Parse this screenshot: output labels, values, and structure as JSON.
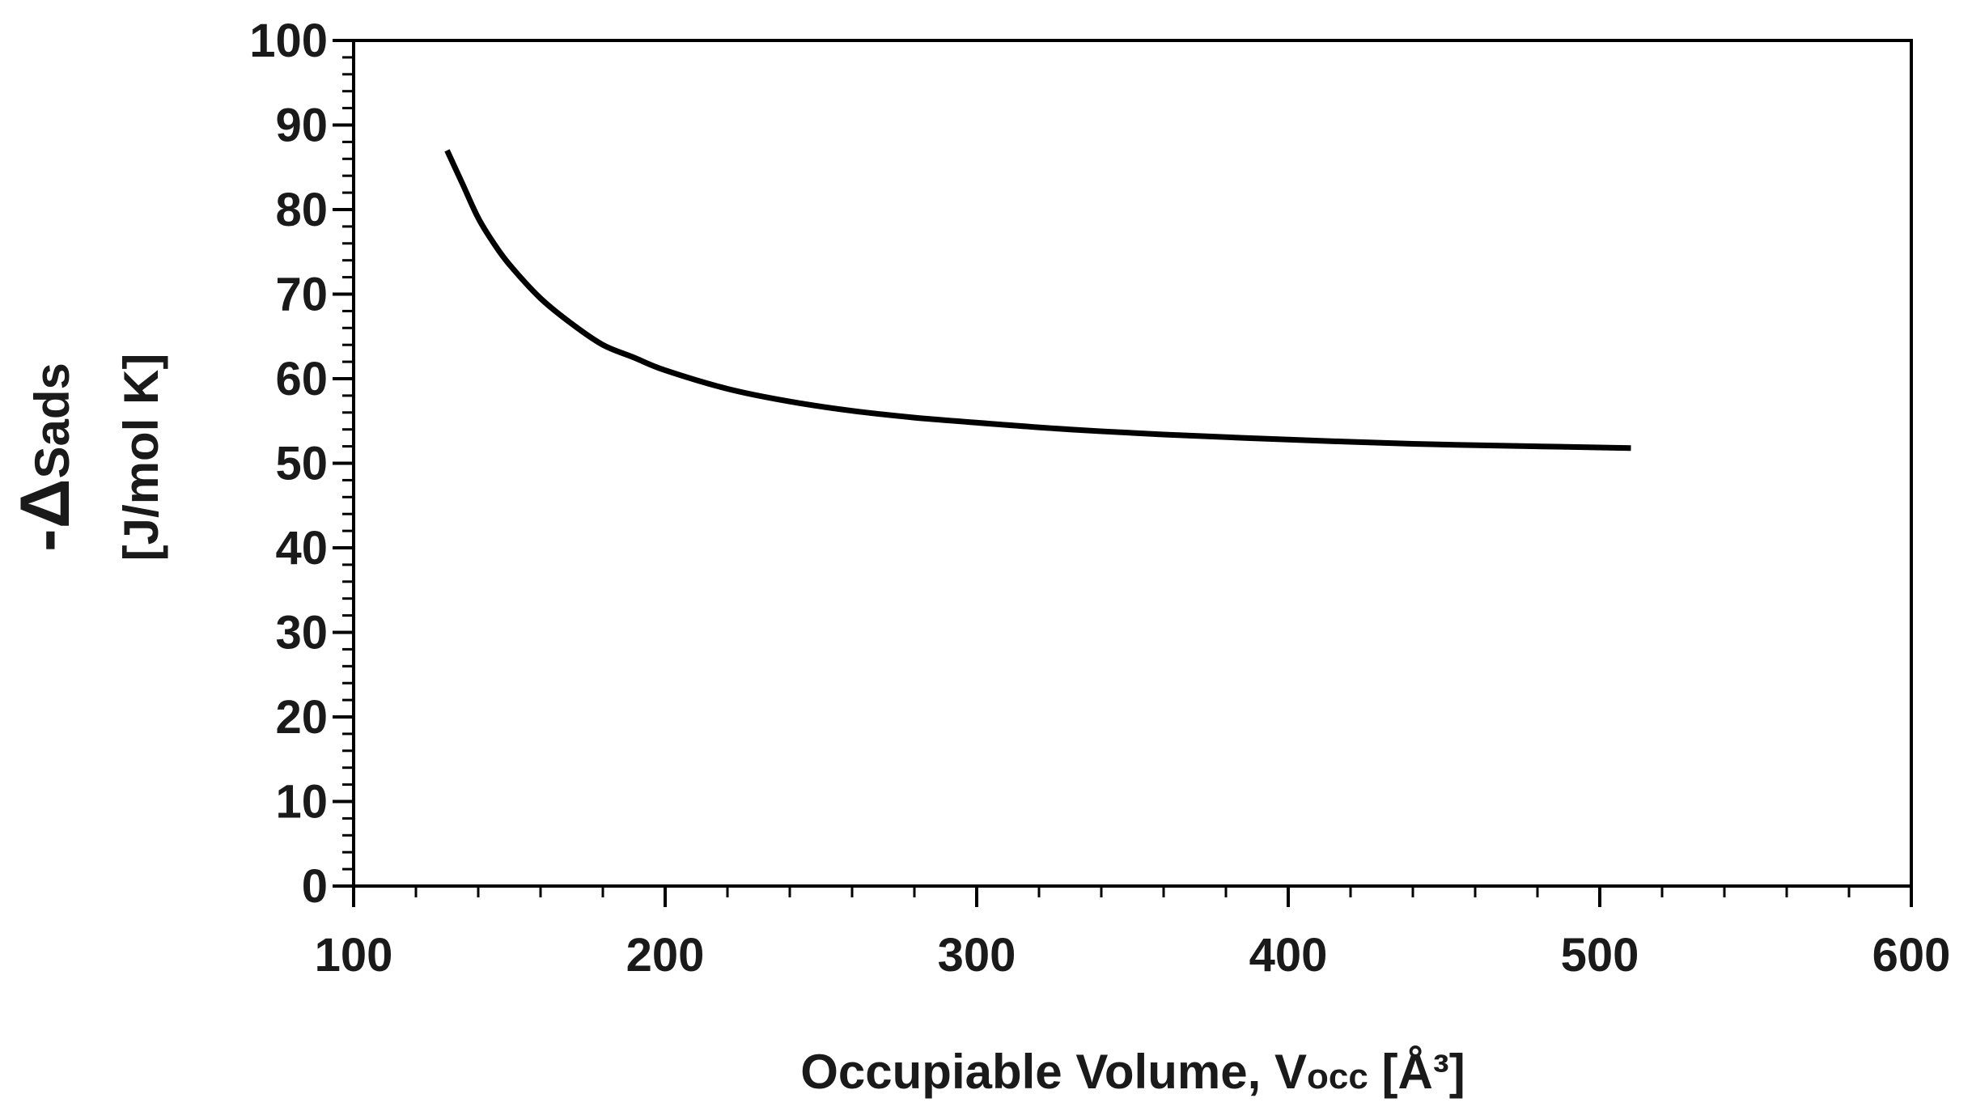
{
  "chart_data": {
    "type": "line",
    "title": "",
    "xlabel": {
      "main": "Occupiable Volume, V",
      "sub": "occ",
      "unit": " [Å³]"
    },
    "ylabel": {
      "line1_prefix": "-Δ",
      "line1_rest": "Sads",
      "line2": "[J/mol K]"
    },
    "xlim": [
      100,
      600
    ],
    "ylim": [
      0,
      100
    ],
    "x_ticks": [
      100,
      200,
      300,
      400,
      500,
      600
    ],
    "y_ticks": [
      0,
      10,
      20,
      30,
      40,
      50,
      60,
      70,
      80,
      90,
      100
    ],
    "x_minor_step": 20,
    "y_minor_step": 2,
    "grid": false,
    "legend": "none",
    "series": [
      {
        "color": "#000000",
        "x": [
          130,
          135,
          140,
          145,
          150,
          160,
          170,
          180,
          190,
          200,
          220,
          240,
          260,
          280,
          300,
          330,
          360,
          400,
          440,
          480,
          510
        ],
        "y": [
          87,
          83,
          79,
          76,
          73.5,
          69.5,
          66.5,
          64,
          62.5,
          61,
          58.8,
          57.3,
          56.2,
          55.4,
          54.8,
          54,
          53.4,
          52.8,
          52.3,
          52,
          51.8
        ]
      }
    ]
  }
}
